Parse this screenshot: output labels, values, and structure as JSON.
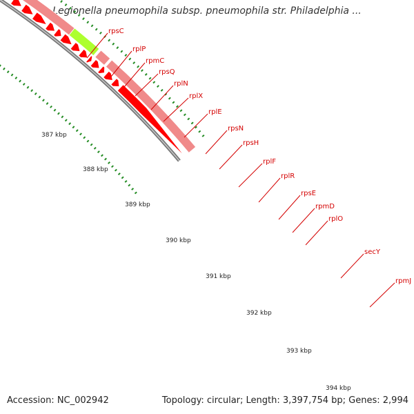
{
  "title": "Legionella pneumophila subsp. pneumophila str. Philadelphia ...",
  "footer": {
    "accession": "Accession: NC_002942",
    "summary": "Topology: circular; Length: 3,397,754 bp; Genes: 2,994"
  },
  "colors": {
    "background": "#ffffff",
    "backbone": "#888888",
    "cds_strand": "#ff0000",
    "outline_strand": "#f08a8a",
    "highlight_gene": "#adff2f",
    "other_gene": "#0000ee",
    "tick": "#228b22",
    "label": "#d40000"
  },
  "scale_labels": [
    "387 kbp",
    "388 kbp",
    "389 kbp",
    "390 kbp",
    "391 kbp",
    "392 kbp",
    "393 kbp",
    "394 kbp"
  ],
  "gene_labels": [
    "rpsC",
    "rplP",
    "rpmC",
    "rpsQ",
    "rplN",
    "rplX",
    "rplE",
    "rpsN",
    "rpsH",
    "rplF",
    "rplR",
    "rpsE",
    "rpmD",
    "rplO",
    "secY",
    "rpmJ"
  ]
}
